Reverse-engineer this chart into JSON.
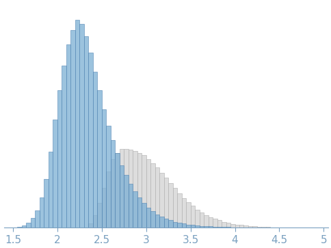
{
  "blue_hist_edges": [
    1.55,
    1.6,
    1.65,
    1.7,
    1.75,
    1.8,
    1.85,
    1.9,
    1.95,
    2.0,
    2.05,
    2.1,
    2.15,
    2.2,
    2.25,
    2.3,
    2.35,
    2.4,
    2.45,
    2.5,
    2.55,
    2.6,
    2.65,
    2.7,
    2.75,
    2.8,
    2.85,
    2.9,
    2.95,
    3.0,
    3.05,
    3.1,
    3.15,
    3.2,
    3.25,
    3.3,
    3.35,
    3.4,
    3.45,
    3.5,
    3.55,
    3.6,
    3.65,
    3.7,
    3.75,
    3.8,
    3.85,
    3.9,
    3.95,
    4.0,
    4.05,
    4.1,
    4.15,
    4.2,
    4.25,
    4.3,
    4.35,
    4.4,
    4.45,
    4.5,
    4.55,
    4.6,
    4.65,
    4.7,
    4.75,
    4.8,
    4.85,
    4.9,
    4.95
  ],
  "blue_hist_vals": [
    0.004,
    0.012,
    0.025,
    0.048,
    0.085,
    0.145,
    0.235,
    0.365,
    0.52,
    0.66,
    0.78,
    0.88,
    0.95,
    1.0,
    0.98,
    0.92,
    0.84,
    0.75,
    0.66,
    0.57,
    0.49,
    0.42,
    0.36,
    0.3,
    0.255,
    0.21,
    0.175,
    0.145,
    0.118,
    0.096,
    0.079,
    0.065,
    0.053,
    0.044,
    0.036,
    0.029,
    0.024,
    0.02,
    0.016,
    0.013,
    0.011,
    0.009,
    0.008,
    0.007,
    0.006,
    0.005,
    0.004,
    0.004,
    0.003,
    0.003,
    0.002,
    0.002,
    0.002,
    0.001,
    0.001,
    0.001,
    0.001,
    0.001,
    0.0008,
    0.0006,
    0.0005,
    0.0004,
    0.0003,
    0.0003,
    0.0002,
    0.0002,
    0.0001,
    0.0001,
    0.0001
  ],
  "gray_hist_edges": [
    2.35,
    2.4,
    2.45,
    2.5,
    2.55,
    2.6,
    2.65,
    2.7,
    2.75,
    2.8,
    2.85,
    2.9,
    2.95,
    3.0,
    3.05,
    3.1,
    3.15,
    3.2,
    3.25,
    3.3,
    3.35,
    3.4,
    3.45,
    3.5,
    3.55,
    3.6,
    3.65,
    3.7,
    3.75,
    3.8,
    3.85,
    3.9,
    3.95,
    4.0,
    4.05,
    4.1,
    4.15,
    4.2,
    4.25,
    4.3,
    4.35,
    4.4,
    4.45,
    4.5,
    4.55,
    4.6,
    4.65,
    4.7,
    4.75,
    4.8,
    4.85,
    4.9
  ],
  "gray_hist_vals": [
    0.02,
    0.06,
    0.12,
    0.19,
    0.27,
    0.33,
    0.36,
    0.38,
    0.38,
    0.375,
    0.37,
    0.36,
    0.35,
    0.33,
    0.31,
    0.29,
    0.265,
    0.24,
    0.215,
    0.19,
    0.165,
    0.143,
    0.123,
    0.105,
    0.088,
    0.074,
    0.062,
    0.052,
    0.043,
    0.036,
    0.029,
    0.024,
    0.019,
    0.016,
    0.013,
    0.01,
    0.008,
    0.007,
    0.006,
    0.005,
    0.004,
    0.003,
    0.003,
    0.002,
    0.002,
    0.0015,
    0.0012,
    0.001,
    0.0008,
    0.0006,
    0.0004,
    0.0003
  ],
  "blue_face_color": "#7bafd4",
  "blue_edge_color": "#4a7fb0",
  "gray_face_color": "#d8d8d8",
  "gray_edge_color": "#b0b0b0",
  "blue_alpha": 0.75,
  "gray_alpha": 0.85,
  "xlim": [
    1.4,
    5.05
  ],
  "ylim": [
    0,
    1.08
  ],
  "xticks": [
    1.5,
    2.0,
    2.5,
    3.0,
    3.5,
    4.0,
    4.5,
    5.0
  ],
  "tick_color": "#7aa0c0",
  "axis_color": "#7aa0c0",
  "background_color": "#ffffff",
  "bin_width": 0.05
}
